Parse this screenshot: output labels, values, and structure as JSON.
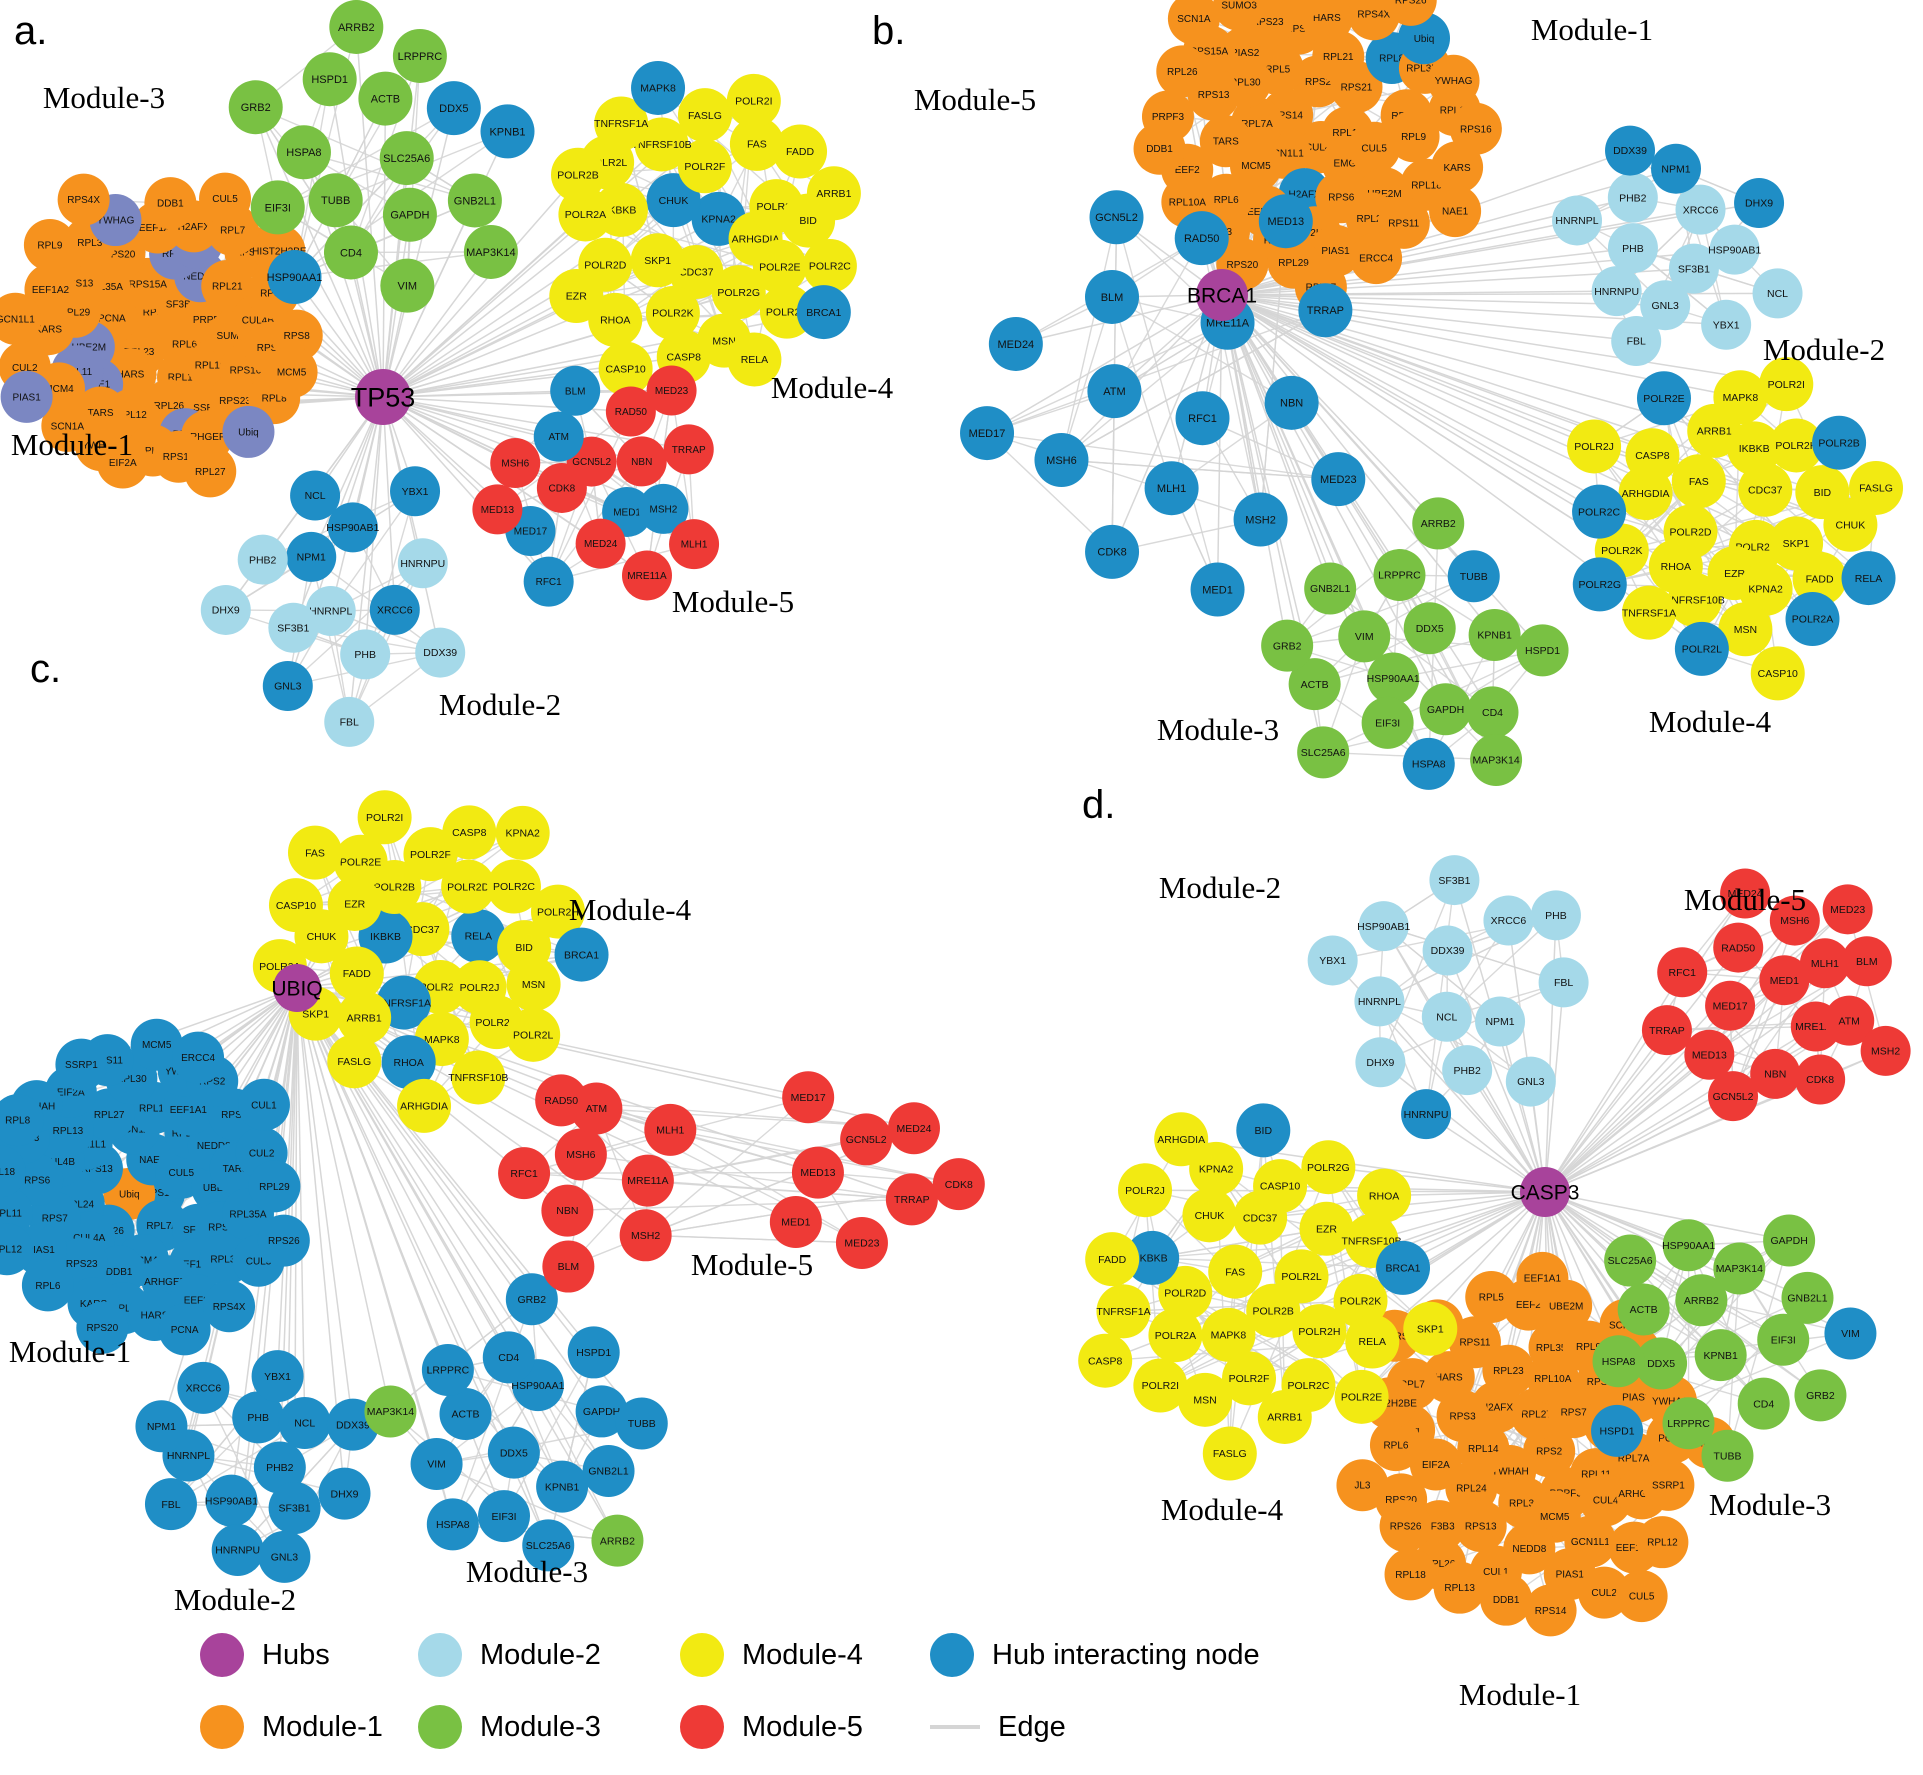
{
  "figure_type": "protein-interaction-network",
  "colors": {
    "hub": "#A8439B",
    "module1": "#F6921E",
    "module2": "#A5D9E9",
    "module3": "#79C143",
    "module4": "#F2EA12",
    "module5": "#EE3A36",
    "hub_interacting": "#1F8EC6",
    "module1_interacting": "#7B87C2",
    "edge": "#D5D5D5",
    "label": "#000000"
  },
  "legend": {
    "items": [
      {
        "label": "Hubs",
        "color_key": "hub",
        "shape": "circle"
      },
      {
        "label": "Module-1",
        "color_key": "module1",
        "shape": "circle"
      },
      {
        "label": "Module-2",
        "color_key": "module2",
        "shape": "circle"
      },
      {
        "label": "Module-3",
        "color_key": "module3",
        "shape": "circle"
      },
      {
        "label": "Module-4",
        "color_key": "module4",
        "shape": "circle"
      },
      {
        "label": "Module-5",
        "color_key": "module5",
        "shape": "circle"
      },
      {
        "label": "Hub interacting node",
        "color_key": "hub_interacting",
        "shape": "circle"
      },
      {
        "label": "Edge",
        "color_key": "edge",
        "shape": "line"
      }
    ]
  },
  "panels": [
    {
      "id": "a",
      "letter": "a.",
      "hub": "TP53",
      "modules": [
        {
          "id": "m1",
          "label": "Module-1",
          "color_key": "module1",
          "nodes": [
            "RPS6",
            "RPL6",
            "RPL23",
            "SF3B3",
            "RPL14",
            "PCNA",
            "PRPF3",
            "HARS",
            "RPS15A",
            "RPL10A",
            "UBE2M",
            "NEDD8",
            "RPL26",
            "RPL35A",
            "SUMO3",
            "NAE1",
            "RPS7",
            "SSRP1",
            "RPL29",
            "RPL21",
            "RPL12",
            "RPS20",
            "RPS16",
            "RPL11",
            "EEF2",
            "RPL5",
            "RPS13",
            "CUL4B",
            "TARS",
            "EEF1A1",
            "RPS23",
            "KARS",
            "RPS11",
            "RPL13",
            "RPL3",
            "RPS3",
            "MCM4",
            "H2AFX",
            "ARHGEF4",
            "EEF1A2",
            "RPS2",
            "YWHAH",
            "YWHAG",
            "RPL8",
            "CUL2",
            "RPL7",
            "RPS14",
            "RPL9",
            "RPS8",
            "SCN1A",
            "DDB1",
            "Ubiq",
            "GCN1L1",
            "HIST2H2BE",
            "EIF2A",
            "RPS4X",
            "MCM5",
            "PIAS1",
            "CUL5",
            "RPL27"
          ],
          "alt_nodes": [
            "RPL11",
            "RPL5",
            "EEF2",
            "UBE2M",
            "NEDD8",
            "PIAS1",
            "RPS7",
            "NAE1",
            "Ubiq",
            "YWHAG"
          ]
        },
        {
          "id": "m2",
          "label": "Module-2",
          "color_key": "module2",
          "nodes": [
            "HNRNPL",
            "NPM1",
            "XRCC6",
            "SF3B1",
            "HSP90AB1",
            "PHB",
            "PHB2",
            "HNRNPU",
            "GNL3",
            "NCL",
            "DDX39",
            "DHX9",
            "YBX1",
            "FBL"
          ],
          "hub_interacting_nodes": [
            "NPM1",
            "XRCC6",
            "HSP90AB1",
            "GNL3",
            "NCL",
            "YBX1"
          ]
        },
        {
          "id": "m3",
          "label": "Module-3",
          "color_key": "module3",
          "nodes": [
            "SLC25A6",
            "TUBB",
            "ACTB",
            "GAPDH",
            "HSPA8",
            "DDX5",
            "CD4",
            "HSPD1",
            "GNB2L1",
            "EIF3I",
            "LRPPRC",
            "VIM",
            "GRB2",
            "KPNB1",
            "HSP90AA1",
            "ARRB2",
            "MAP3K14"
          ],
          "hub_interacting_nodes": [
            "DDX5",
            "KPNB1",
            "HSP90AA1"
          ]
        },
        {
          "id": "m4",
          "label": "Module-4",
          "color_key": "module4",
          "nodes": [
            "KPNA2",
            "CDC37",
            "CHUK",
            "ARHGDIA",
            "SKP1",
            "POLR2F",
            "POLR2G",
            "IKBKB",
            "POLR2J",
            "POLR2K",
            "TNFRSF10B",
            "POLR2E",
            "POLR2D",
            "FAS",
            "MSN",
            "POLR2L",
            "BID",
            "RHOA",
            "FASLG",
            "POLR2H",
            "POLR2A",
            "FADD",
            "CASP8",
            "TNFRSF1A",
            "POLR2C",
            "EZR",
            "POLR2I",
            "RELA",
            "POLR2B",
            "ARRB1",
            "CASP10",
            "MAPK8",
            "BRCA1"
          ],
          "hub_interacting_nodes": [
            "KPNA2",
            "CHUK",
            "MAPK8",
            "BRCA1"
          ]
        },
        {
          "id": "m5",
          "label": "Module-5",
          "color_key": "module5",
          "nodes": [
            "GCN5L2",
            "MED1",
            "CDK8",
            "NBN",
            "MED24",
            "ATM",
            "MSH2",
            "MED17",
            "RAD50",
            "MRE11A",
            "MSH6",
            "TRRAP",
            "RFC1",
            "BLM",
            "MLH1",
            "MED13",
            "MED23"
          ],
          "hub_interacting_nodes": [
            "MSH2",
            "MED17",
            "MED1",
            "RFC1",
            "BLM",
            "ATM"
          ]
        }
      ]
    },
    {
      "id": "b",
      "letter": "b.",
      "hub": "BRCA1",
      "modules": [
        {
          "id": "m1",
          "label": "Module-1",
          "color_key": "module1",
          "nodes": [
            "CUL4B",
            "RPS14",
            "RPL14",
            "GCN1L1",
            "RPS2",
            "EMG1",
            "RPL7A",
            "RPS21",
            "H2AFX",
            "RPL5",
            "CUL5",
            "MCM5",
            "RPL21",
            "RPS6",
            "RPL30",
            "RPL13",
            "EEF1A1",
            "RPS8",
            "UBE2M",
            "TARS",
            "RPL8",
            "HIST2H2BE",
            "PIAS2",
            "RPL9",
            "RPL6",
            "HARS",
            "RPL23",
            "RPS13",
            "RPL35A",
            "RPL12",
            "RPS23",
            "RPL18",
            "EEF2",
            "RPS4X",
            "PIAS1",
            "RPS15A",
            "RPL11",
            "JL3",
            "CUL4A",
            "RPS11",
            "PRPF3",
            "Ubiq",
            "RPL29",
            "SUMO3",
            "KARS",
            "RPL10A",
            "EIF2A",
            "ERCC4",
            "RPL26",
            "YWHAG",
            "RPS20",
            "RPL3",
            "NAE1",
            "DDB1",
            "RPS26",
            "RPL27",
            "SCN1A",
            "RPS16"
          ],
          "hub_interacting_nodes": [
            "H2AFX",
            "Ubiq",
            "RPL8"
          ]
        },
        {
          "id": "m2",
          "label": "Module-2",
          "color_key": "module2",
          "nodes": [
            "SF3B1",
            "PHB",
            "XRCC6",
            "GNL3",
            "PHB2",
            "HSP90AB1",
            "HNRNPU",
            "NPM1",
            "YBX1",
            "HNRNPL",
            "DHX9",
            "FBL",
            "DDX39",
            "NCL"
          ],
          "hub_interacting_nodes": [
            "NPM1",
            "DHX9",
            "DDX39"
          ]
        },
        {
          "id": "m3",
          "label": "Module-3",
          "color_key": "module3",
          "nodes": [
            "HSP90AA1",
            "DDX5",
            "GAPDH",
            "VIM",
            "KPNB1",
            "EIF3I",
            "LRPPRC",
            "CD4",
            "ACTB",
            "TUBB",
            "HSPA8",
            "GNB2L1",
            "HSPD1",
            "SLC25A6",
            "ARRB2",
            "MAP3K14",
            "GRB2"
          ],
          "hub_interacting_nodes": [
            "TUBB",
            "HSPA8"
          ]
        },
        {
          "id": "m4",
          "label": "Module-4",
          "color_key": "module4",
          "nodes": [
            "POLR2F",
            "POLR2D",
            "CDC37",
            "EZR",
            "FAS",
            "SKP1",
            "RHOA",
            "IKBKB",
            "KPNA2",
            "ARHGDIA",
            "BID",
            "TNFRSF10B",
            "ARRB1",
            "FADD",
            "POLR2K",
            "POLR2H",
            "MSN",
            "CASP8",
            "CHUK",
            "TNFRSF1A",
            "MAPK8",
            "POLR2A",
            "POLR2C",
            "POLR2B",
            "POLR2L",
            "POLR2E",
            "RELA",
            "POLR2G",
            "POLR2I",
            "CASP10",
            "POLR2J",
            "FASLG"
          ],
          "hub_interacting_nodes": [
            "POLR2A",
            "POLR2C",
            "POLR2B",
            "POLR2L",
            "POLR2E",
            "RELA",
            "POLR2G"
          ]
        },
        {
          "id": "m5",
          "label": "Module-5",
          "color_key": "module5",
          "node_color_key": "hub_interacting",
          "nodes": [
            "RFC1",
            "ATM",
            "MRE11A",
            "MLH1",
            "BLM",
            "NBN",
            "MSH6",
            "RAD50",
            "MSH2",
            "MED24",
            "TRRAP",
            "CDK8",
            "GCN5L2",
            "MED23",
            "MED17",
            "MED13",
            "MED1"
          ]
        }
      ]
    },
    {
      "id": "c",
      "letter": "c.",
      "hub": "UBIQ",
      "modules": [
        {
          "id": "m1",
          "label": "Module-1",
          "color_key": "module1",
          "node_color_key": "hub_interacting",
          "accent_nodes": [
            "Ubiq"
          ],
          "accent_color_key": "module1",
          "nodes": [
            "RPS16",
            "Ubiq",
            "NAE1",
            "RPL7A",
            "RPS13",
            "CUL5",
            "RPL26",
            "SCN1A",
            "SF3B3",
            "RPL24",
            "RPL10A",
            "MCM4",
            "GCN1L1",
            "UBE2I",
            "CUL4A",
            "RPL14",
            "EEF1A2",
            "CUL4B",
            "NEDD8",
            "DDB1",
            "RPL27",
            "RPS3",
            "RPS7",
            "EEF1A1",
            "ARHGEF4",
            "RPL13",
            "TARS",
            "RPS23",
            "RPL30",
            "RPL31",
            "RPS6",
            "RPS8",
            "RPL7",
            "EIF2A",
            "RPL35A",
            "PIAS1",
            "YWHAG",
            "EEF2",
            "RPL23",
            "CUL2",
            "KARS",
            "RPS11",
            "CUL3",
            "RPL11",
            "RPS2",
            "HARS",
            "YWHAH",
            "RPL29",
            "RPL6",
            "MCM5",
            "RPS4X",
            "RPL18",
            "CUL1",
            "RPS20",
            "SSRP1",
            "RPS26",
            "RPL12",
            "ERCC4",
            "PCNA",
            "RPL8"
          ]
        },
        {
          "id": "m2",
          "label": "Module-2",
          "color_key": "module2",
          "node_color_key": "hub_interacting",
          "nodes": [
            "PHB2",
            "HSP90AB1",
            "PHB",
            "SF3B1",
            "HNRNPL",
            "NCL",
            "HNRNPU",
            "XRCC6",
            "DHX9",
            "FBL",
            "YBX1",
            "GNL3",
            "NPM1",
            "DDX39"
          ]
        },
        {
          "id": "m3",
          "label": "Module-3",
          "color_key": "module3",
          "node_color_key": "hub_interacting",
          "accent_nodes": [
            "ARRB2",
            "MAP3K14"
          ],
          "accent_color_key": "module3",
          "nodes": [
            "DDX5",
            "HSP90AA1",
            "KPNB1",
            "ACTB",
            "GAPDH",
            "EIF3I",
            "CD4",
            "GNB2L1",
            "VIM",
            "HSPD1",
            "SLC25A6",
            "LRPPRC",
            "TUBB",
            "HSPA8",
            "GRB2",
            "ARRB2",
            "MAP3K14"
          ]
        },
        {
          "id": "m4",
          "label": "Module-4",
          "color_key": "module4",
          "nodes": [
            "CDC37",
            "POLR2K",
            "IKBKB",
            "RELA",
            "TNFRSF1A",
            "POLR2B",
            "POLR2J",
            "FADD",
            "POLR2D",
            "MAPK8",
            "EZR",
            "BID",
            "ARRB1",
            "POLR2F",
            "POLR2G",
            "CHUK",
            "POLR2C",
            "RHOA",
            "POLR2E",
            "MSN",
            "SKP1",
            "CASP8",
            "TNFRSF10B",
            "CASP10",
            "POLR2H",
            "FASLG",
            "POLR2I",
            "POLR2L",
            "POLR2A",
            "KPNA2",
            "ARHGDIA",
            "FAS",
            "BRCA1"
          ],
          "hub_interacting_nodes": [
            "BRCA1",
            "IKBKB",
            "TNFRSF1A",
            "RELA",
            "RHOA"
          ]
        },
        {
          "id": "m5",
          "label": "Module-5",
          "color_key": "module5",
          "nodes": [
            "MSH6",
            "MRE11A",
            "NBN",
            "ATM",
            "MSH2",
            "RFC1",
            "MLH1",
            "BLM",
            "RAD50",
            "GCN5L2",
            "TRRAP",
            "MED13",
            "MED24",
            "MED23",
            "MED17",
            "CDK8",
            "MED1"
          ]
        }
      ]
    },
    {
      "id": "d",
      "letter": "d.",
      "hub": "CASP3",
      "modules": [
        {
          "id": "m1",
          "label": "Module-1",
          "color_key": "module1",
          "nodes": [
            "RPS2",
            "YWHAH",
            "RPL27",
            "PRPF3",
            "RPL14",
            "RPS7",
            "RPL31",
            "H2AFX",
            "RPL11",
            "RPL24",
            "RPL10A",
            "MCM5",
            "RPS3",
            "RPL29",
            "RPS13",
            "RPL23",
            "CUL4",
            "EIF2A",
            "RPS16",
            "NEDD8",
            "HARS",
            "RPL7A",
            "SF3B3",
            "RPL35A",
            "GCN1L1",
            "Ubiq",
            "PIAS2",
            "CUL1",
            "RPS11",
            "ARHGEF4",
            "RPS20",
            "RPL9",
            "PIAS1",
            "RPL7",
            "PCNA",
            "RPL26",
            "EEF2",
            "EEF1A2",
            "RPL6",
            "RPS23",
            "DDB1",
            "RPL30",
            "SSRP1",
            "RPS26",
            "UBE2M",
            "CUL2",
            "HIST2H2BE",
            "YWHAG",
            "RPL13",
            "RPL5",
            "RPL12",
            "JL3",
            "SCN1A",
            "RPS14",
            "KARS",
            "MCM4",
            "RPL18",
            "EEF1A1",
            "CUL5"
          ]
        },
        {
          "id": "m2",
          "label": "Module-2",
          "color_key": "module2",
          "nodes": [
            "NCL",
            "DDX39",
            "NPM1",
            "HNRNPL",
            "XRCC6",
            "PHB2",
            "HSP90AB1",
            "FBL",
            "DHX9",
            "SF3B1",
            "GNL3",
            "YBX1",
            "PHB",
            "HNRNPU"
          ],
          "hub_interacting_nodes": [
            "HNRNPU"
          ]
        },
        {
          "id": "m3",
          "label": "Module-3",
          "color_key": "module3",
          "nodes": [
            "KPNB1",
            "ARRB2",
            "EIF3I",
            "DDX5",
            "MAP3K14",
            "CD4",
            "ACTB",
            "GNB2L1",
            "LRPPRC",
            "HSP90AA1",
            "GRB2",
            "HSPA8",
            "GAPDH",
            "TUBB",
            "SLC25A6",
            "VIM",
            "HSPD1"
          ],
          "hub_interacting_nodes": [
            "VIM",
            "HSPD1"
          ]
        },
        {
          "id": "m4",
          "label": "Module-4",
          "color_key": "module4",
          "nodes": [
            "POLR2B",
            "FAS",
            "POLR2L",
            "MAPK8",
            "CDC37",
            "POLR2H",
            "POLR2D",
            "EZR",
            "POLR2F",
            "CHUK",
            "POLR2K",
            "POLR2A",
            "CASP10",
            "POLR2C",
            "IKBKB",
            "TNFRSF10B",
            "MSN",
            "KPNA2",
            "RELA",
            "TNFRSF1A",
            "POLR2G",
            "ARRB1",
            "POLR2J",
            "BRCA1",
            "POLR2I",
            "BID",
            "POLR2E",
            "FADD",
            "RHOA",
            "FASLG",
            "ARHGDIA",
            "SKP1",
            "CASP8"
          ],
          "hub_interacting_nodes": [
            "BRCA1",
            "IKBKB",
            "BID"
          ]
        },
        {
          "id": "m5",
          "label": "Module-5",
          "color_key": "module5",
          "nodes": [
            "MED1",
            "MRE11A",
            "MED17",
            "MLH1",
            "NBN",
            "RAD50",
            "ATM",
            "MED13",
            "MSH6",
            "CDK8",
            "RFC1",
            "BLM",
            "GCN5L2",
            "MED24",
            "MSH2",
            "TRRAP",
            "MED23"
          ]
        }
      ]
    }
  ]
}
